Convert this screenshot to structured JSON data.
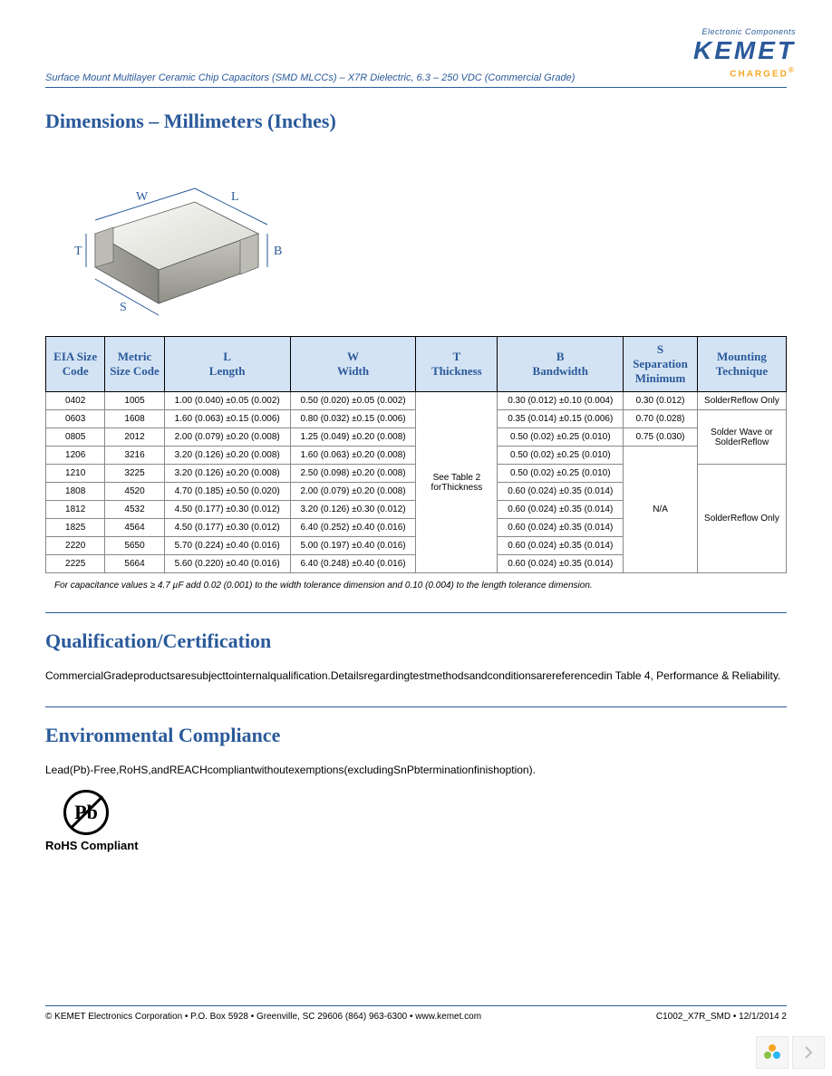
{
  "header": {
    "title": "Surface Mount Multilayer Ceramic Chip Capacitors (SMD MLCCs) – X7R Dielectric, 6.3 – 250 VDC (Commercial Grade)",
    "logo_tag": "Electronic Components",
    "logo_main": "KEMET",
    "logo_charged": "CHARGED"
  },
  "sections": {
    "dimensions_title": "Dimensions – Millimeters (Inches)",
    "qualification_title": "Qualification/Certification",
    "environmental_title": "Environmental Compliance"
  },
  "diagram_labels": {
    "L": "L",
    "W": "W",
    "T": "T",
    "B": "B",
    "S": "S"
  },
  "table": {
    "headers": {
      "eia": "EIA Size Code",
      "metric": "Metric Size Code",
      "L": "L\nLength",
      "W": "W\nWidth",
      "T": "T\nThickness",
      "B": "B\nBandwidth",
      "S": "S\nSeparation Minimum",
      "mount": "Mounting Technique"
    },
    "col_widths": [
      "8%",
      "8%",
      "17%",
      "17%",
      "11%",
      "17%",
      "10%",
      "12%"
    ],
    "header_bg": "#d4e3f4",
    "header_color": "#2a5a9a",
    "rows": [
      {
        "eia": "0402",
        "metric": "1005",
        "L": "1.00 (0.040) ±0.05 (0.002)",
        "W": "0.50 (0.020) ±0.05 (0.002)",
        "B": "0.30 (0.012) ±0.10 (0.004)",
        "S": "0.30 (0.012)"
      },
      {
        "eia": "0603",
        "metric": "1608",
        "L": "1.60 (0.063) ±0.15 (0.006)",
        "W": "0.80 (0.032) ±0.15 (0.006)",
        "B": "0.35 (0.014) ±0.15 (0.006)",
        "S": "0.70 (0.028)"
      },
      {
        "eia": "0805",
        "metric": "2012",
        "L": "2.00 (0.079) ±0.20 (0.008)",
        "W": "1.25 (0.049) ±0.20 (0.008)",
        "B": "0.50 (0.02) ±0.25 (0.010)",
        "S": "0.75 (0.030)"
      },
      {
        "eia": "1206",
        "metric": "3216",
        "L": "3.20 (0.126) ±0.20 (0.008)",
        "W": "1.60 (0.063) ±0.20 (0.008)",
        "B": "0.50 (0.02) ±0.25 (0.010)",
        "S": ""
      },
      {
        "eia": "1210",
        "metric": "3225",
        "L": "3.20 (0.126) ±0.20 (0.008)",
        "W": "2.50 (0.098) ±0.20 (0.008)",
        "B": "0.50 (0.02) ±0.25 (0.010)",
        "S": ""
      },
      {
        "eia": "1808",
        "metric": "4520",
        "L": "4.70 (0.185) ±0.50 (0.020)",
        "W": "2.00 (0.079) ±0.20 (0.008)",
        "B": "0.60 (0.024) ±0.35 (0.014)",
        "S": ""
      },
      {
        "eia": "1812",
        "metric": "4532",
        "L": "4.50 (0.177) ±0.30 (0.012)",
        "W": "3.20 (0.126) ±0.30 (0.012)",
        "B": "0.60 (0.024) ±0.35 (0.014)",
        "S": ""
      },
      {
        "eia": "1825",
        "metric": "4564",
        "L": "4.50 (0.177) ±0.30 (0.012)",
        "W": "6.40 (0.252) ±0.40 (0.016)",
        "B": "0.60 (0.024) ±0.35 (0.014)",
        "S": ""
      },
      {
        "eia": "2220",
        "metric": "5650",
        "L": "5.70 (0.224) ±0.40 (0.016)",
        "W": "5.00 (0.197) ±0.40 (0.016)",
        "B": "0.60 (0.024) ±0.35 (0.014)",
        "S": ""
      },
      {
        "eia": "2225",
        "metric": "5664",
        "L": "5.60 (0.220) ±0.40 (0.016)",
        "W": "6.40 (0.248) ±0.40 (0.016)",
        "B": "0.60 (0.024) ±0.35 (0.014)",
        "S": ""
      }
    ],
    "t_cell": "See Table 2 forThickness",
    "s_na": "N/A",
    "mount_row0": "SolderReflow Only",
    "mount_rows1_3": "Solder Wave or SolderReflow",
    "mount_rows4_9": "SolderReflow Only"
  },
  "footnote": "For capacitance values ≥ 4.7 µF add 0.02 (0.001) to the width tolerance dimension and 0.10 (0.004) to the length tolerance dimension.",
  "qualification_text": "CommercialGradeproductsaresubjecttointernalqualification.Detailsregardingtestmethodsandconditionsarereferencedin Table 4, Performance & Reliability.",
  "environmental_text": "Lead(Pb)-Free,RoHS,andREACHcompliantwithoutexemptions(excludingSnPbterminationfinishoption).",
  "rohs": {
    "pb": "Pb",
    "label": "RoHS Compliant"
  },
  "footer": {
    "left": "© KEMET Electronics Corporation • P.O. Box 5928 • Greenville, SC 29606 (864) 963-6300 • www.kemet.com",
    "right": "C1002_X7R_SMD • 12/1/2014  2"
  },
  "colors": {
    "brand_blue": "#2a5a9a",
    "brand_orange": "#f5a623",
    "table_header_bg": "#d4e3f4"
  }
}
